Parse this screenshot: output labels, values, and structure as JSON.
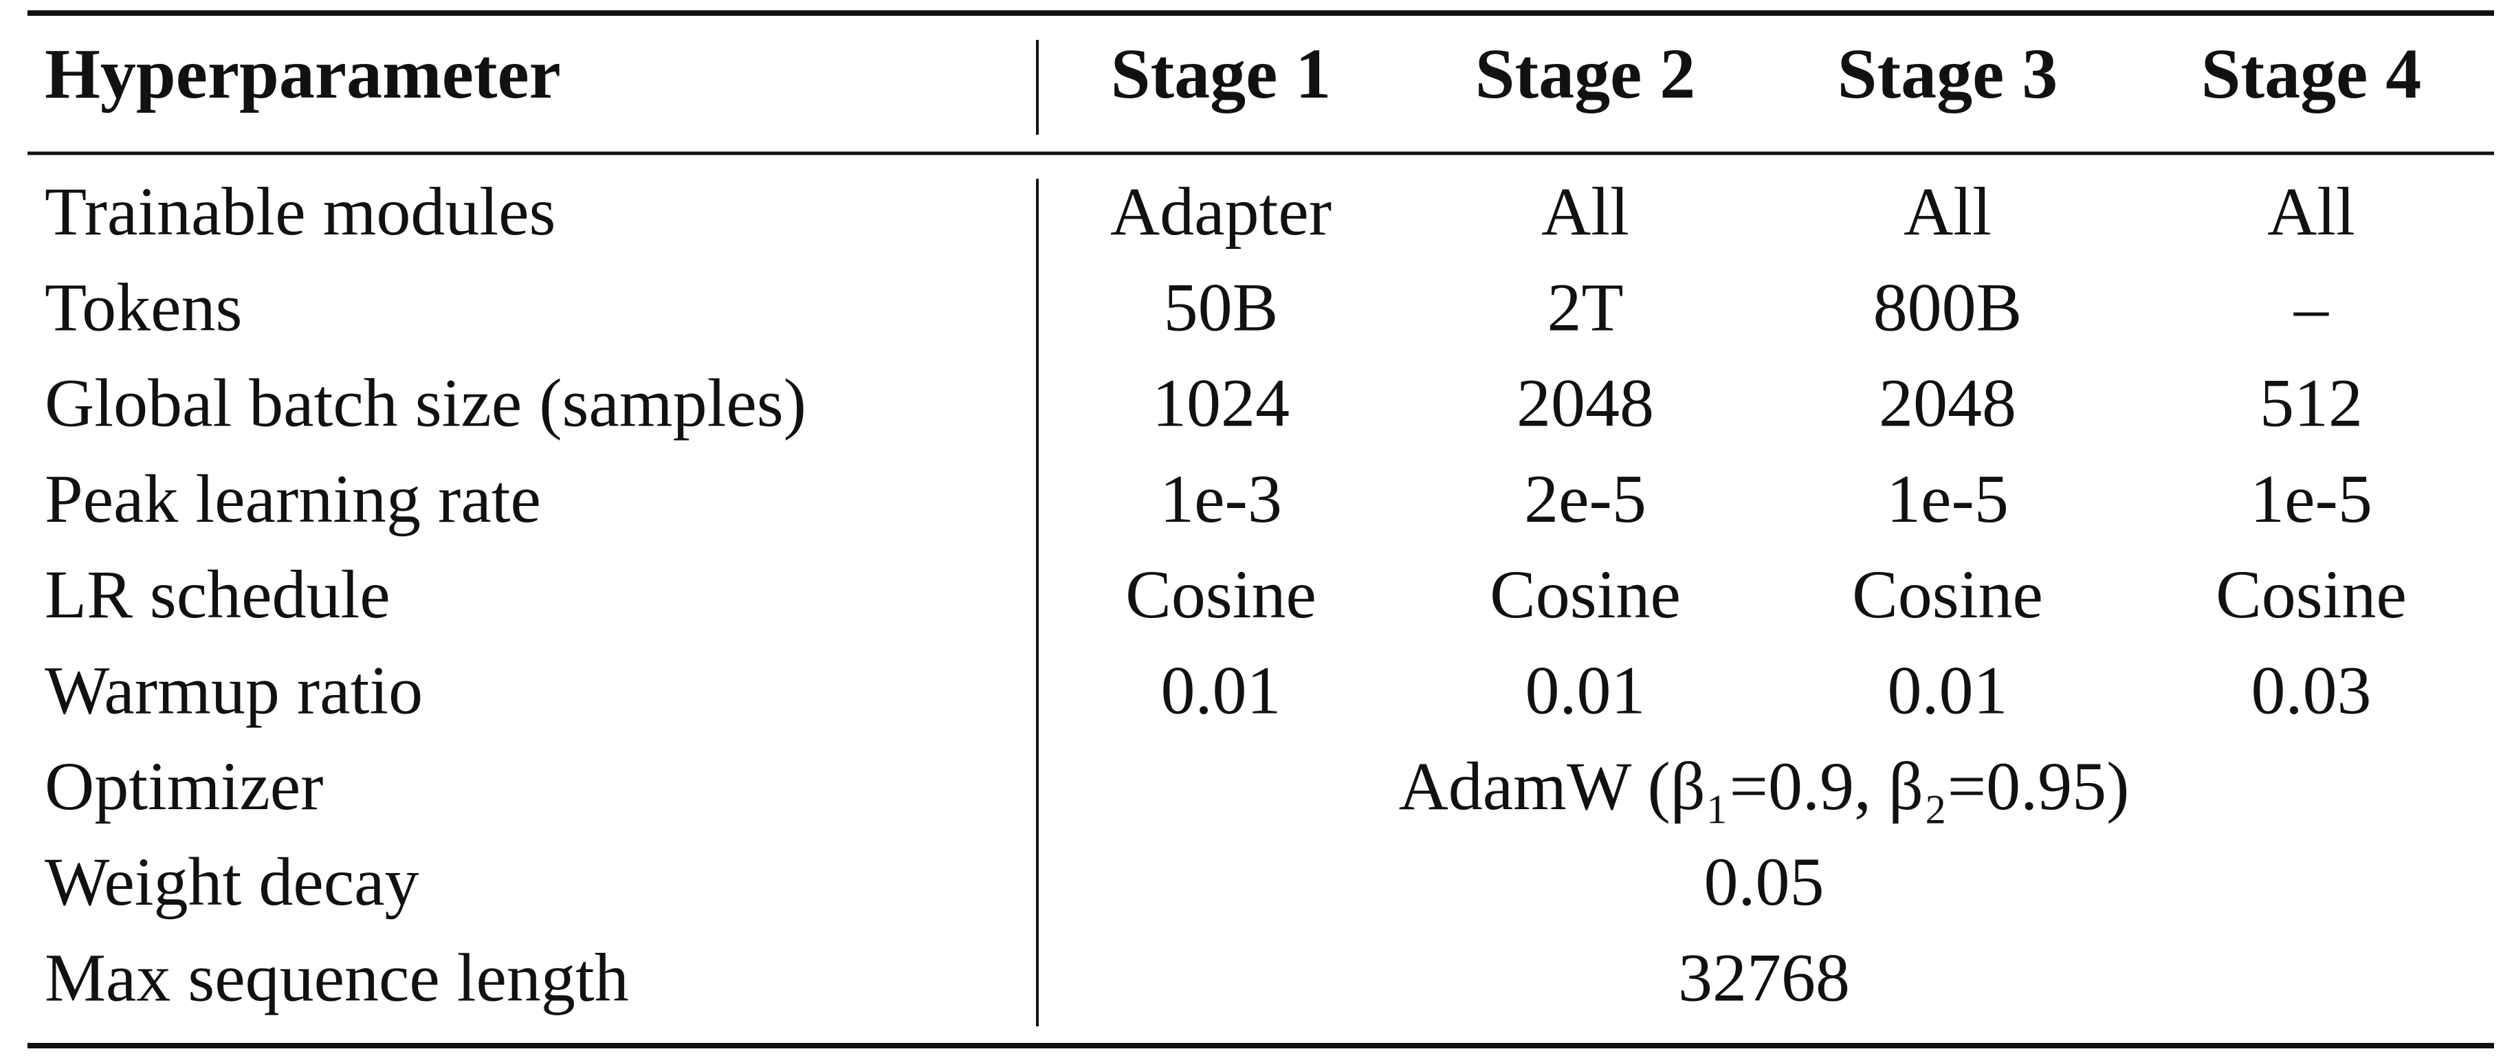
{
  "table": {
    "header": [
      "Hyperparameter",
      "Stage 1",
      "Stage 2",
      "Stage 3",
      "Stage 4"
    ],
    "rows": [
      [
        "Trainable modules",
        "Adapter",
        "All",
        "All",
        "All"
      ],
      [
        "Tokens",
        "50B",
        "2T",
        "800B",
        "–"
      ],
      [
        "Global batch size (samples)",
        "1024",
        "2048",
        "2048",
        "512"
      ],
      [
        "Peak learning rate",
        "1e-3",
        "2e-5",
        "1e-5",
        "1e-5"
      ],
      [
        "LR schedule",
        "Cosine",
        "Cosine",
        "Cosine",
        "Cosine"
      ],
      [
        "Warmup ratio",
        "0.01",
        "0.01",
        "0.01",
        "0.03"
      ],
      [
        "Optimizer",
        "AdamW (β₁=0.9, β₂=0.95)"
      ],
      [
        "Weight decay",
        "0.05"
      ],
      [
        "Max sequence length",
        "32768"
      ]
    ]
  }
}
